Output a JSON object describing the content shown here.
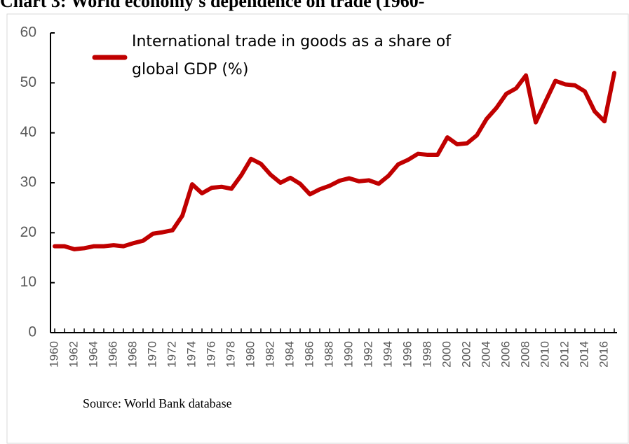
{
  "chart_data": {
    "type": "line",
    "title": "Chart 3: World economy's dependence on trade (1960-",
    "source": "Source: World Bank database",
    "categories": [
      "1960",
      null,
      "1962",
      null,
      "1964",
      null,
      "1966",
      null,
      "1968",
      null,
      "1970",
      null,
      "1972",
      null,
      "1974",
      null,
      "1976",
      null,
      "1978",
      null,
      "1980",
      null,
      "1982",
      null,
      "1984",
      null,
      "1986",
      null,
      "1988",
      null,
      "1990",
      null,
      "1992",
      null,
      "1994",
      null,
      "1996",
      null,
      "1998",
      null,
      "2000",
      null,
      "2002",
      null,
      "2004",
      null,
      "2006",
      null,
      "2008",
      null,
      "2010",
      null,
      "2012",
      null,
      "2014",
      null,
      "2016",
      null
    ],
    "series": [
      {
        "name": "International trade in goods as a share of global GDP (%)",
        "color": "#c00000",
        "values": [
          17.3,
          17.3,
          16.7,
          16.9,
          17.3,
          17.3,
          17.5,
          17.3,
          17.9,
          18.4,
          19.8,
          20.1,
          20.5,
          23.4,
          29.7,
          27.9,
          29.0,
          29.2,
          28.8,
          31.5,
          34.8,
          33.8,
          31.6,
          30.0,
          31.0,
          29.8,
          27.7,
          28.7,
          29.4,
          30.4,
          30.9,
          30.3,
          30.5,
          29.8,
          31.4,
          33.7,
          34.6,
          35.8,
          35.6,
          35.6,
          39.1,
          37.7,
          37.9,
          39.5,
          42.8,
          45.0,
          47.8,
          48.9,
          51.5,
          42.1,
          46.3,
          50.4,
          49.7,
          49.5,
          48.3,
          44.3,
          42.3,
          52.0
        ]
      }
    ],
    "ylim": [
      0,
      60
    ],
    "yticks": [
      0,
      10,
      20,
      30,
      40,
      50,
      60
    ],
    "grid": false,
    "legend": "top-left"
  }
}
